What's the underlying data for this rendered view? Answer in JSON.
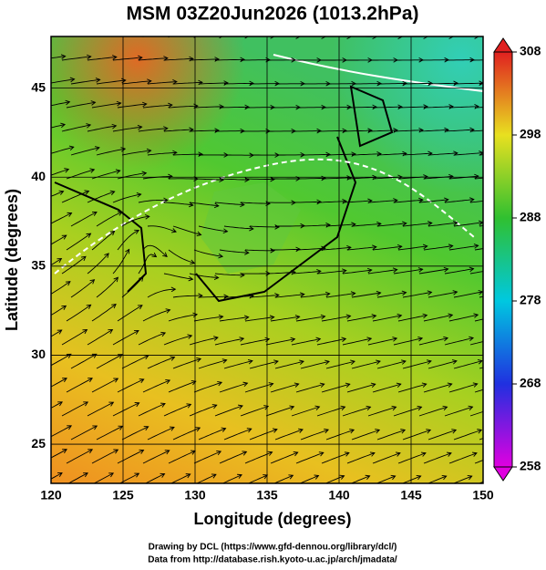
{
  "title": "MSM 03Z20Jun2026 (1013.2hPa)",
  "map": {
    "x_label": "Longitude (degrees)",
    "y_label": "Latitude  (degrees)",
    "lon_range": [
      120,
      150
    ],
    "lat_range": [
      22.8,
      47.9
    ],
    "xticks": [
      120,
      125,
      130,
      135,
      140,
      145,
      150
    ],
    "yticks": [
      25,
      30,
      35,
      40,
      45
    ]
  },
  "colorbar": {
    "range": [
      258,
      308
    ],
    "ticks": [
      258,
      268,
      278,
      288,
      298,
      308
    ]
  },
  "credits": [
    "Drawing by DCL (https://www.gfd-dennou.org/library/dcl/)",
    "Data from http://database.rish.kyoto-u.ac.jp/arch/jmadata/"
  ]
}
